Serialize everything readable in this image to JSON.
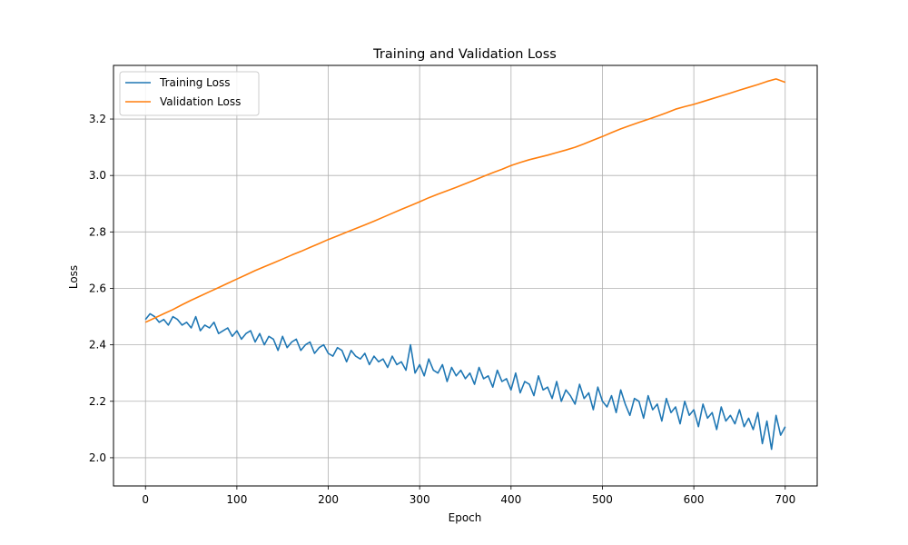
{
  "chart_data": {
    "type": "line",
    "title": "Training and Validation Loss",
    "xlabel": "Epoch",
    "ylabel": "Loss",
    "xlim": [
      -35,
      735
    ],
    "ylim": [
      1.9,
      3.39
    ],
    "xticks": [
      0,
      100,
      200,
      300,
      400,
      500,
      600,
      700
    ],
    "yticks": [
      2.0,
      2.2,
      2.4,
      2.6,
      2.8,
      3.0,
      3.2
    ],
    "ytick_labels": [
      "2.0",
      "2.2",
      "2.4",
      "2.6",
      "2.8",
      "3.0",
      "3.2"
    ],
    "grid": true,
    "legend_position": "upper-left",
    "series": [
      {
        "name": "Training Loss",
        "color": "#1f77b4",
        "x": [
          0,
          5,
          10,
          15,
          20,
          25,
          30,
          35,
          40,
          45,
          50,
          55,
          60,
          65,
          70,
          75,
          80,
          85,
          90,
          95,
          100,
          105,
          110,
          115,
          120,
          125,
          130,
          135,
          140,
          145,
          150,
          155,
          160,
          165,
          170,
          175,
          180,
          185,
          190,
          195,
          200,
          205,
          210,
          215,
          220,
          225,
          230,
          235,
          240,
          245,
          250,
          255,
          260,
          265,
          270,
          275,
          280,
          285,
          290,
          295,
          300,
          305,
          310,
          315,
          320,
          325,
          330,
          335,
          340,
          345,
          350,
          355,
          360,
          365,
          370,
          375,
          380,
          385,
          390,
          395,
          400,
          405,
          410,
          415,
          420,
          425,
          430,
          435,
          440,
          445,
          450,
          455,
          460,
          465,
          470,
          475,
          480,
          485,
          490,
          495,
          500,
          505,
          510,
          515,
          520,
          525,
          530,
          535,
          540,
          545,
          550,
          555,
          560,
          565,
          570,
          575,
          580,
          585,
          590,
          595,
          600,
          605,
          610,
          615,
          620,
          625,
          630,
          635,
          640,
          645,
          650,
          655,
          660,
          665,
          670,
          675,
          680,
          685,
          690,
          695,
          700
        ],
        "values": [
          2.49,
          2.51,
          2.5,
          2.48,
          2.49,
          2.47,
          2.5,
          2.49,
          2.47,
          2.48,
          2.46,
          2.5,
          2.45,
          2.47,
          2.46,
          2.48,
          2.44,
          2.45,
          2.46,
          2.43,
          2.45,
          2.42,
          2.44,
          2.45,
          2.41,
          2.44,
          2.4,
          2.43,
          2.42,
          2.38,
          2.43,
          2.39,
          2.41,
          2.42,
          2.38,
          2.4,
          2.41,
          2.37,
          2.39,
          2.4,
          2.37,
          2.36,
          2.39,
          2.38,
          2.34,
          2.38,
          2.36,
          2.35,
          2.37,
          2.33,
          2.36,
          2.34,
          2.35,
          2.32,
          2.36,
          2.33,
          2.34,
          2.31,
          2.4,
          2.3,
          2.33,
          2.29,
          2.35,
          2.31,
          2.3,
          2.33,
          2.27,
          2.32,
          2.29,
          2.31,
          2.28,
          2.3,
          2.26,
          2.32,
          2.28,
          2.29,
          2.25,
          2.31,
          2.27,
          2.28,
          2.24,
          2.3,
          2.23,
          2.27,
          2.26,
          2.22,
          2.29,
          2.24,
          2.25,
          2.21,
          2.27,
          2.2,
          2.24,
          2.22,
          2.19,
          2.26,
          2.21,
          2.23,
          2.17,
          2.25,
          2.2,
          2.18,
          2.22,
          2.16,
          2.24,
          2.19,
          2.15,
          2.21,
          2.2,
          2.14,
          2.22,
          2.17,
          2.19,
          2.13,
          2.21,
          2.16,
          2.18,
          2.12,
          2.2,
          2.15,
          2.17,
          2.11,
          2.19,
          2.14,
          2.16,
          2.1,
          2.18,
          2.13,
          2.15,
          2.12,
          2.17,
          2.11,
          2.14,
          2.1,
          2.16,
          2.05,
          2.13,
          2.03,
          2.15,
          2.08,
          2.11
        ]
      },
      {
        "name": "Validation Loss",
        "color": "#ff7f0e",
        "x": [
          0,
          10,
          20,
          30,
          40,
          50,
          60,
          70,
          80,
          90,
          100,
          110,
          120,
          130,
          140,
          150,
          160,
          170,
          180,
          190,
          200,
          210,
          220,
          230,
          240,
          250,
          260,
          270,
          280,
          290,
          300,
          310,
          320,
          330,
          340,
          350,
          360,
          370,
          380,
          390,
          400,
          410,
          420,
          430,
          440,
          450,
          460,
          470,
          480,
          490,
          500,
          510,
          520,
          530,
          540,
          550,
          560,
          570,
          580,
          590,
          600,
          610,
          620,
          630,
          640,
          650,
          660,
          670,
          680,
          690,
          700
        ],
        "values": [
          2.48,
          2.495,
          2.51,
          2.525,
          2.542,
          2.558,
          2.573,
          2.588,
          2.603,
          2.618,
          2.633,
          2.648,
          2.663,
          2.677,
          2.69,
          2.704,
          2.718,
          2.731,
          2.745,
          2.759,
          2.773,
          2.786,
          2.799,
          2.812,
          2.825,
          2.838,
          2.852,
          2.866,
          2.88,
          2.893,
          2.907,
          2.921,
          2.934,
          2.946,
          2.958,
          2.971,
          2.984,
          2.997,
          3.01,
          3.022,
          3.035,
          3.046,
          3.056,
          3.064,
          3.072,
          3.081,
          3.09,
          3.1,
          3.112,
          3.125,
          3.138,
          3.152,
          3.165,
          3.177,
          3.188,
          3.199,
          3.21,
          3.222,
          3.235,
          3.244,
          3.252,
          3.262,
          3.272,
          3.282,
          3.292,
          3.302,
          3.312,
          3.322,
          3.333,
          3.342,
          3.33
        ]
      }
    ]
  }
}
